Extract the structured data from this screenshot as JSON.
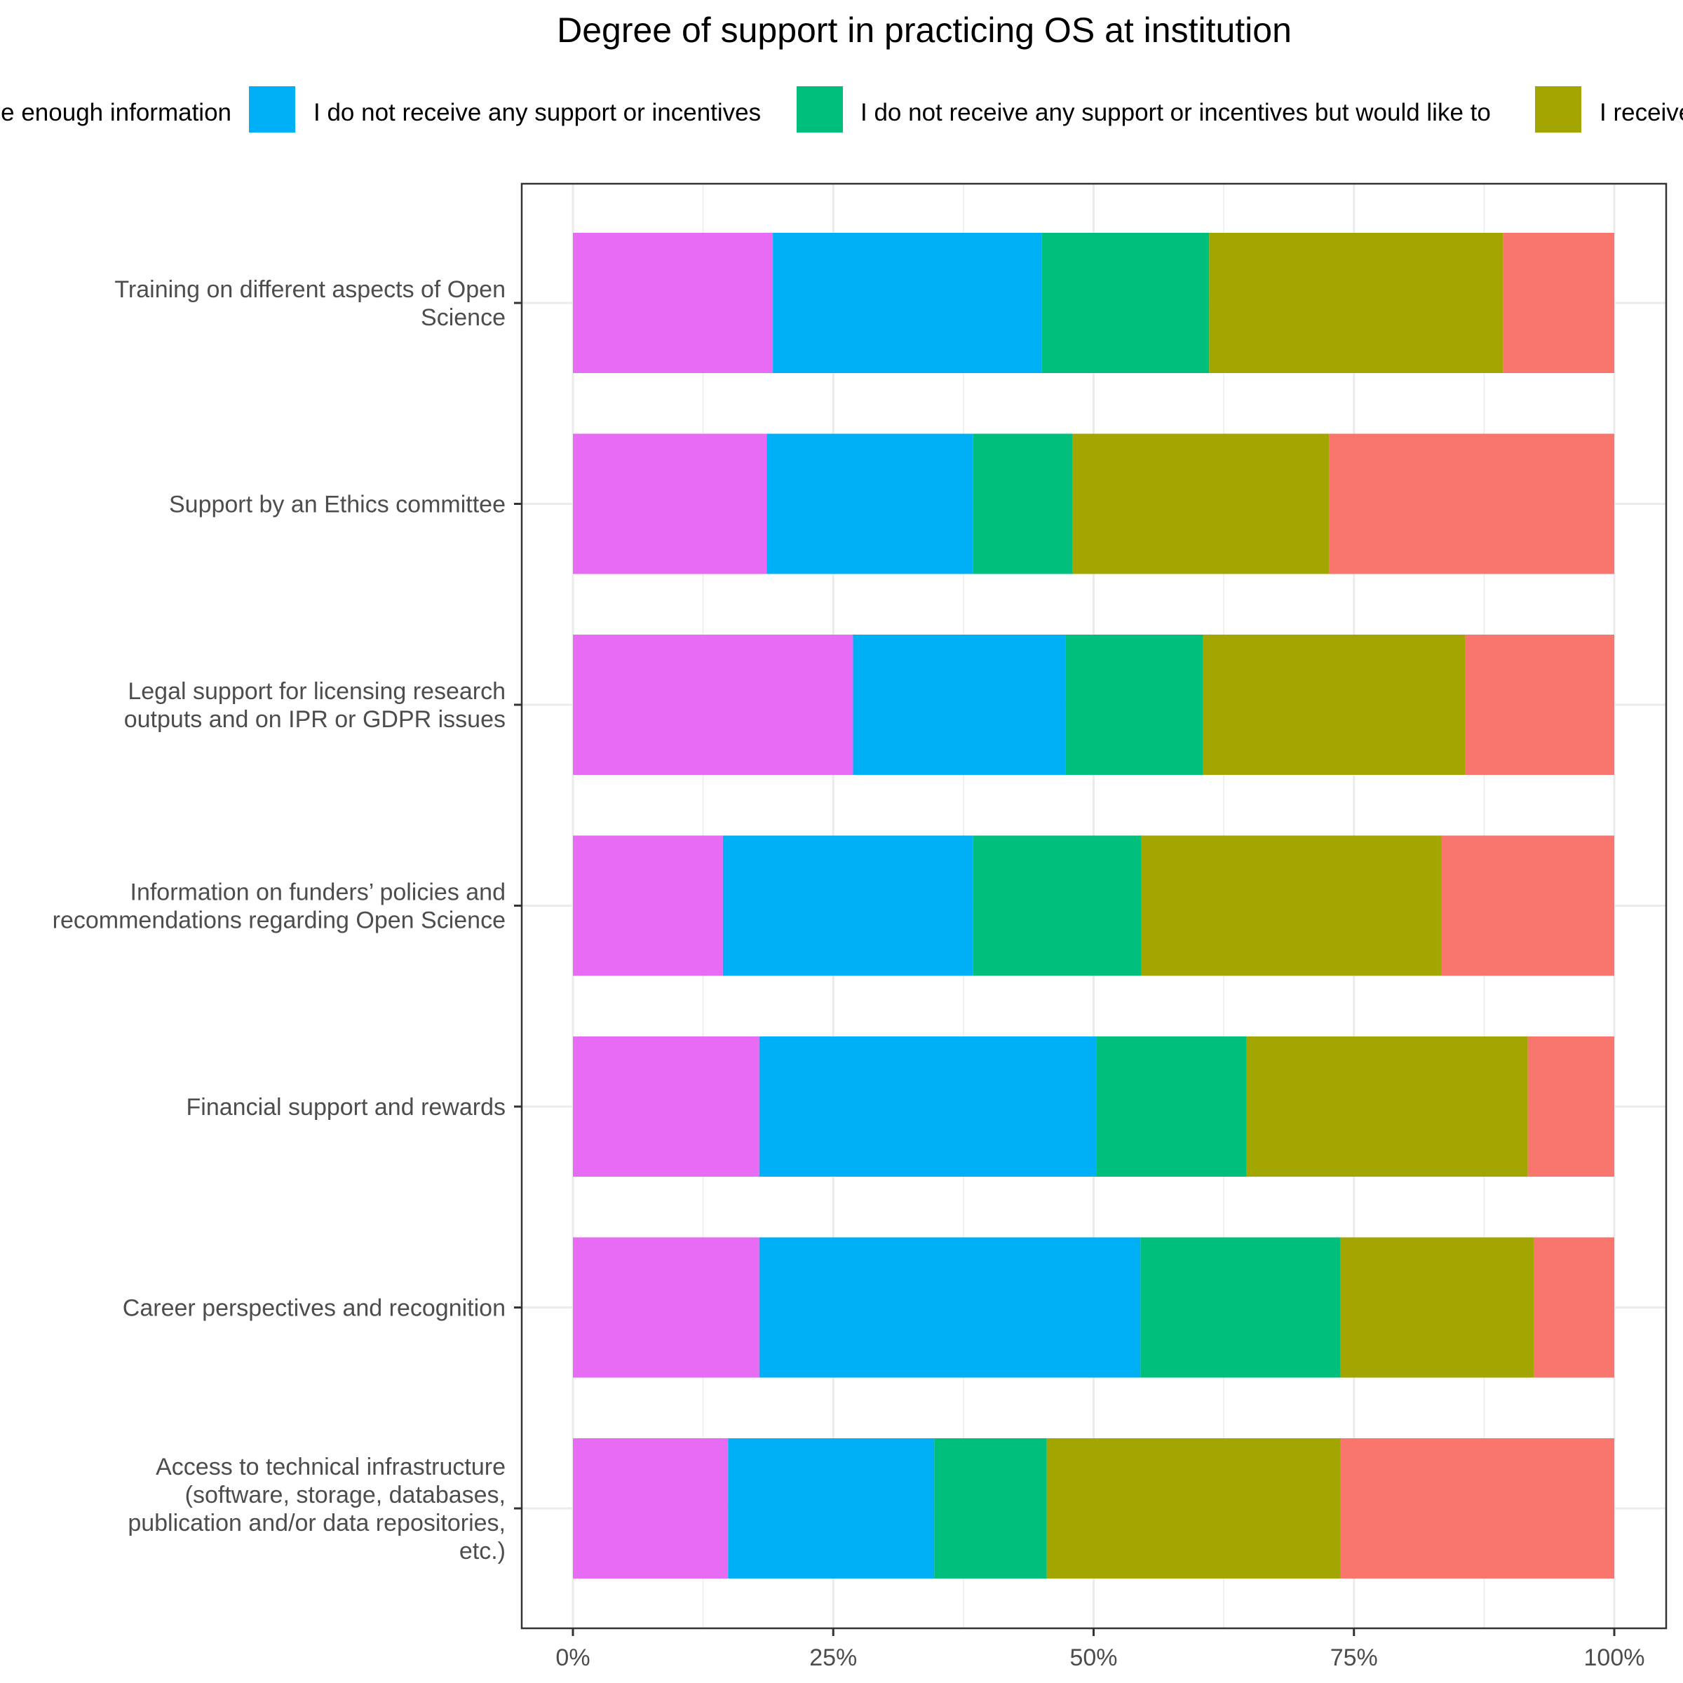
{
  "chart_data": {
    "type": "bar",
    "orientation": "horizontal",
    "stacked": true,
    "normalized": true,
    "title": "Degree of support in practicing OS at institution",
    "legend_position": "top",
    "xlabel": "",
    "ylabel": "",
    "xlim": [
      0,
      100
    ],
    "x_ticks": [
      "0%",
      "25%",
      "50%",
      "75%",
      "100%"
    ],
    "grid": true,
    "categories": [
      [
        "Training on different aspects of Open",
        "Science"
      ],
      [
        "Support by an Ethics committee"
      ],
      [
        "Legal support for licensing research",
        "outputs and on IPR or GDPR issues"
      ],
      [
        "Information on funders’ policies and",
        "recommendations regarding Open Science"
      ],
      [
        "Financial support and rewards"
      ],
      [
        "Career perspectives and recognition"
      ],
      [
        "Access to technical infrastructure",
        "(software, storage, databases,",
        "publication and/or data repositories,",
        "etc.)"
      ]
    ],
    "series": [
      {
        "name": "e enough information",
        "color": "#E76BF3",
        "values": [
          19.2,
          18.6,
          26.9,
          14.4,
          17.9,
          17.9,
          14.9
        ]
      },
      {
        "name": "I do not receive any support or incentives",
        "color": "#00B0F6",
        "values": [
          25.8,
          19.8,
          20.4,
          24.0,
          32.4,
          36.6,
          19.8
        ]
      },
      {
        "name": "I do not receive any support or incentives but would like to",
        "color": "#00BF7D",
        "values": [
          16.1,
          9.6,
          13.2,
          16.2,
          14.4,
          19.2,
          10.8
        ]
      },
      {
        "name": "I receive",
        "color": "#A3A500",
        "values": [
          28.2,
          24.6,
          25.2,
          28.8,
          27.0,
          18.6,
          28.2
        ]
      },
      {
        "name": "",
        "color": "#F8766D",
        "values": [
          10.7,
          27.4,
          14.3,
          16.6,
          8.3,
          7.7,
          26.3
        ]
      }
    ]
  }
}
